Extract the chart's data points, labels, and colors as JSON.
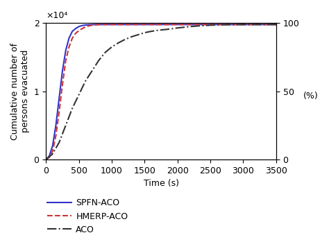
{
  "title": "",
  "xlabel": "Time (s)",
  "ylabel": "Cumulative number of\npersons evacuated",
  "ylabel_right": "(%)",
  "xlim": [
    0,
    3500
  ],
  "ylim_left": [
    0,
    20000
  ],
  "ylim_right": [
    0,
    100
  ],
  "xticks": [
    0,
    500,
    1000,
    1500,
    2000,
    2500,
    3000,
    3500
  ],
  "yticks_left": [
    0,
    10000,
    20000
  ],
  "yticks_left_labels": [
    "0",
    "1",
    "2"
  ],
  "yticks_right": [
    0,
    50,
    100
  ],
  "max_persons": 19800,
  "spfn_aco": {
    "label": "SPFN-ACO",
    "color": "#3333cc",
    "linestyle": "-",
    "linewidth": 1.5,
    "x": [
      0,
      50,
      100,
      150,
      200,
      250,
      300,
      350,
      400,
      450,
      500,
      550,
      600,
      700,
      800,
      1000,
      1500,
      2000,
      2500,
      3000,
      3500
    ],
    "y": [
      0,
      500,
      2000,
      5000,
      9000,
      13000,
      16000,
      17800,
      18800,
      19200,
      19500,
      19650,
      19720,
      19780,
      19800,
      19800,
      19800,
      19800,
      19800,
      19800,
      19800
    ]
  },
  "hmerp_aco": {
    "label": "HMERP-ACO",
    "color": "#cc3333",
    "linestyle": "--",
    "linewidth": 1.5,
    "x": [
      0,
      50,
      100,
      150,
      200,
      250,
      300,
      350,
      400,
      450,
      500,
      550,
      600,
      650,
      700,
      750,
      800,
      900,
      1000,
      1500,
      2000,
      2500,
      3000,
      3500
    ],
    "y": [
      0,
      300,
      1200,
      3500,
      7000,
      11000,
      14500,
      16500,
      17800,
      18500,
      18900,
      19200,
      19450,
      19600,
      19700,
      19750,
      19780,
      19800,
      19800,
      19800,
      19800,
      19800,
      19800,
      19800
    ]
  },
  "aco": {
    "label": "ACO",
    "color": "#333333",
    "linestyle": "-.",
    "linewidth": 1.5,
    "x": [
      0,
      100,
      200,
      300,
      400,
      500,
      600,
      700,
      800,
      900,
      1000,
      1100,
      1200,
      1300,
      1400,
      1500,
      1600,
      1700,
      1800,
      1900,
      2000,
      2100,
      2200,
      2300,
      2400,
      2500,
      2600,
      2700,
      2800,
      2900,
      3000,
      3100,
      3200,
      3300,
      3400,
      3500
    ],
    "y": [
      0,
      800,
      2500,
      5000,
      7500,
      9500,
      11500,
      13000,
      14500,
      15700,
      16500,
      17100,
      17600,
      18000,
      18300,
      18600,
      18800,
      18950,
      19050,
      19150,
      19300,
      19400,
      19500,
      19580,
      19640,
      19700,
      19730,
      19760,
      19780,
      19790,
      19795,
      19798,
      19799,
      19800,
      19800,
      19800
    ]
  },
  "background_color": "#ffffff",
  "font_size": 9,
  "offset_text": "×10⁴"
}
